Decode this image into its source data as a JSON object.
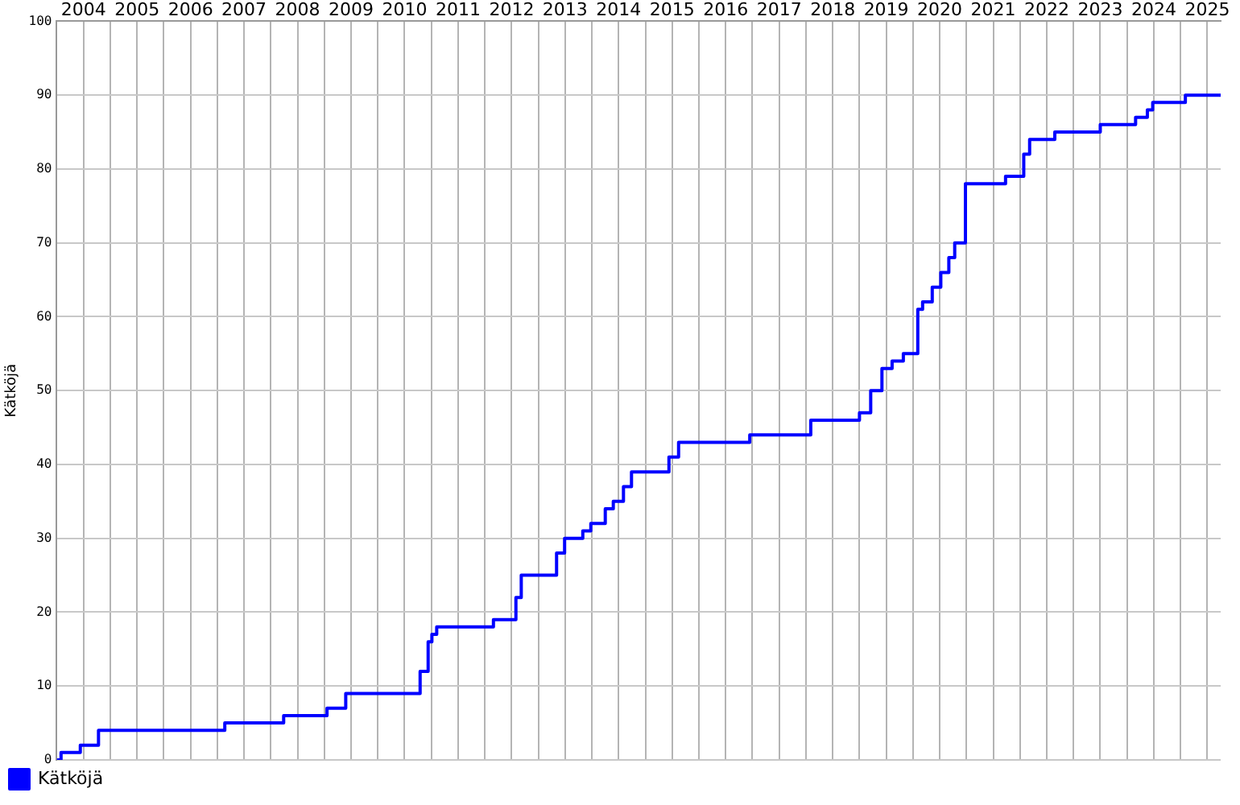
{
  "chart_data": {
    "type": "step",
    "ylabel": "Kätköjä",
    "xlim": [
      2004,
      2025.75
    ],
    "xticks": [
      {
        "value": 2004,
        "label": null
      },
      {
        "value": 2004.5,
        "label": "2004"
      },
      {
        "value": 2005,
        "label": null
      },
      {
        "value": 2005.5,
        "label": "2005"
      },
      {
        "value": 2006,
        "label": null
      },
      {
        "value": 2006.5,
        "label": "2006"
      },
      {
        "value": 2007,
        "label": null
      },
      {
        "value": 2007.5,
        "label": "2007"
      },
      {
        "value": 2008,
        "label": null
      },
      {
        "value": 2008.5,
        "label": "2008"
      },
      {
        "value": 2009,
        "label": null
      },
      {
        "value": 2009.5,
        "label": "2009"
      },
      {
        "value": 2010,
        "label": null
      },
      {
        "value": 2010.5,
        "label": "2010"
      },
      {
        "value": 2011,
        "label": null
      },
      {
        "value": 2011.5,
        "label": "2011"
      },
      {
        "value": 2012,
        "label": null
      },
      {
        "value": 2012.5,
        "label": "2012"
      },
      {
        "value": 2013,
        "label": null
      },
      {
        "value": 2013.5,
        "label": "2013"
      },
      {
        "value": 2014,
        "label": null
      },
      {
        "value": 2014.5,
        "label": "2014"
      },
      {
        "value": 2015,
        "label": null
      },
      {
        "value": 2015.5,
        "label": "2015"
      },
      {
        "value": 2016,
        "label": null
      },
      {
        "value": 2016.5,
        "label": "2016"
      },
      {
        "value": 2017,
        "label": null
      },
      {
        "value": 2017.5,
        "label": "2017"
      },
      {
        "value": 2018,
        "label": null
      },
      {
        "value": 2018.5,
        "label": "2018"
      },
      {
        "value": 2019,
        "label": null
      },
      {
        "value": 2019.5,
        "label": "2019"
      },
      {
        "value": 2020,
        "label": null
      },
      {
        "value": 2020.5,
        "label": "2020"
      },
      {
        "value": 2021,
        "label": null
      },
      {
        "value": 2021.5,
        "label": "2021"
      },
      {
        "value": 2022,
        "label": null
      },
      {
        "value": 2022.5,
        "label": "2022"
      },
      {
        "value": 2023,
        "label": null
      },
      {
        "value": 2023.5,
        "label": "2023"
      },
      {
        "value": 2024,
        "label": null
      },
      {
        "value": 2024.5,
        "label": "2024"
      },
      {
        "value": 2025,
        "label": null
      },
      {
        "value": 2025.5,
        "label": "2025"
      }
    ],
    "ylim": [
      0,
      100
    ],
    "yticks": [
      0,
      10,
      20,
      30,
      40,
      50,
      60,
      70,
      80,
      90,
      100
    ],
    "grid": true,
    "legend": "bottom left",
    "marker": "none",
    "line_style": "solid",
    "series": [
      {
        "name": "Kätköjä",
        "color": "#0000ff",
        "x": [
          2004.0,
          2004.08,
          2004.44,
          2004.78,
          2007.14,
          2008.24,
          2009.05,
          2009.4,
          2010.79,
          2010.94,
          2011.01,
          2011.1,
          2012.16,
          2012.58,
          2012.68,
          2013.34,
          2013.49,
          2013.83,
          2013.98,
          2014.25,
          2014.4,
          2014.59,
          2014.74,
          2015.44,
          2015.62,
          2016.95,
          2018.09,
          2019.0,
          2019.21,
          2019.42,
          2019.61,
          2019.82,
          2020.09,
          2020.18,
          2020.36,
          2020.52,
          2020.67,
          2020.78,
          2020.98,
          2021.73,
          2022.07,
          2022.18,
          2022.65,
          2023.5,
          2024.16,
          2024.38,
          2024.48,
          2025.09,
          2025.75
        ],
        "values": [
          0,
          1,
          2,
          4,
          5,
          6,
          7,
          9,
          12,
          16,
          17,
          18,
          19,
          22,
          25,
          28,
          30,
          31,
          32,
          34,
          35,
          37,
          39,
          41,
          43,
          44,
          46,
          47,
          50,
          53,
          54,
          55,
          61,
          62,
          64,
          66,
          68,
          70,
          78,
          79,
          82,
          84,
          85,
          86,
          87,
          88,
          89,
          90,
          90
        ]
      }
    ]
  }
}
